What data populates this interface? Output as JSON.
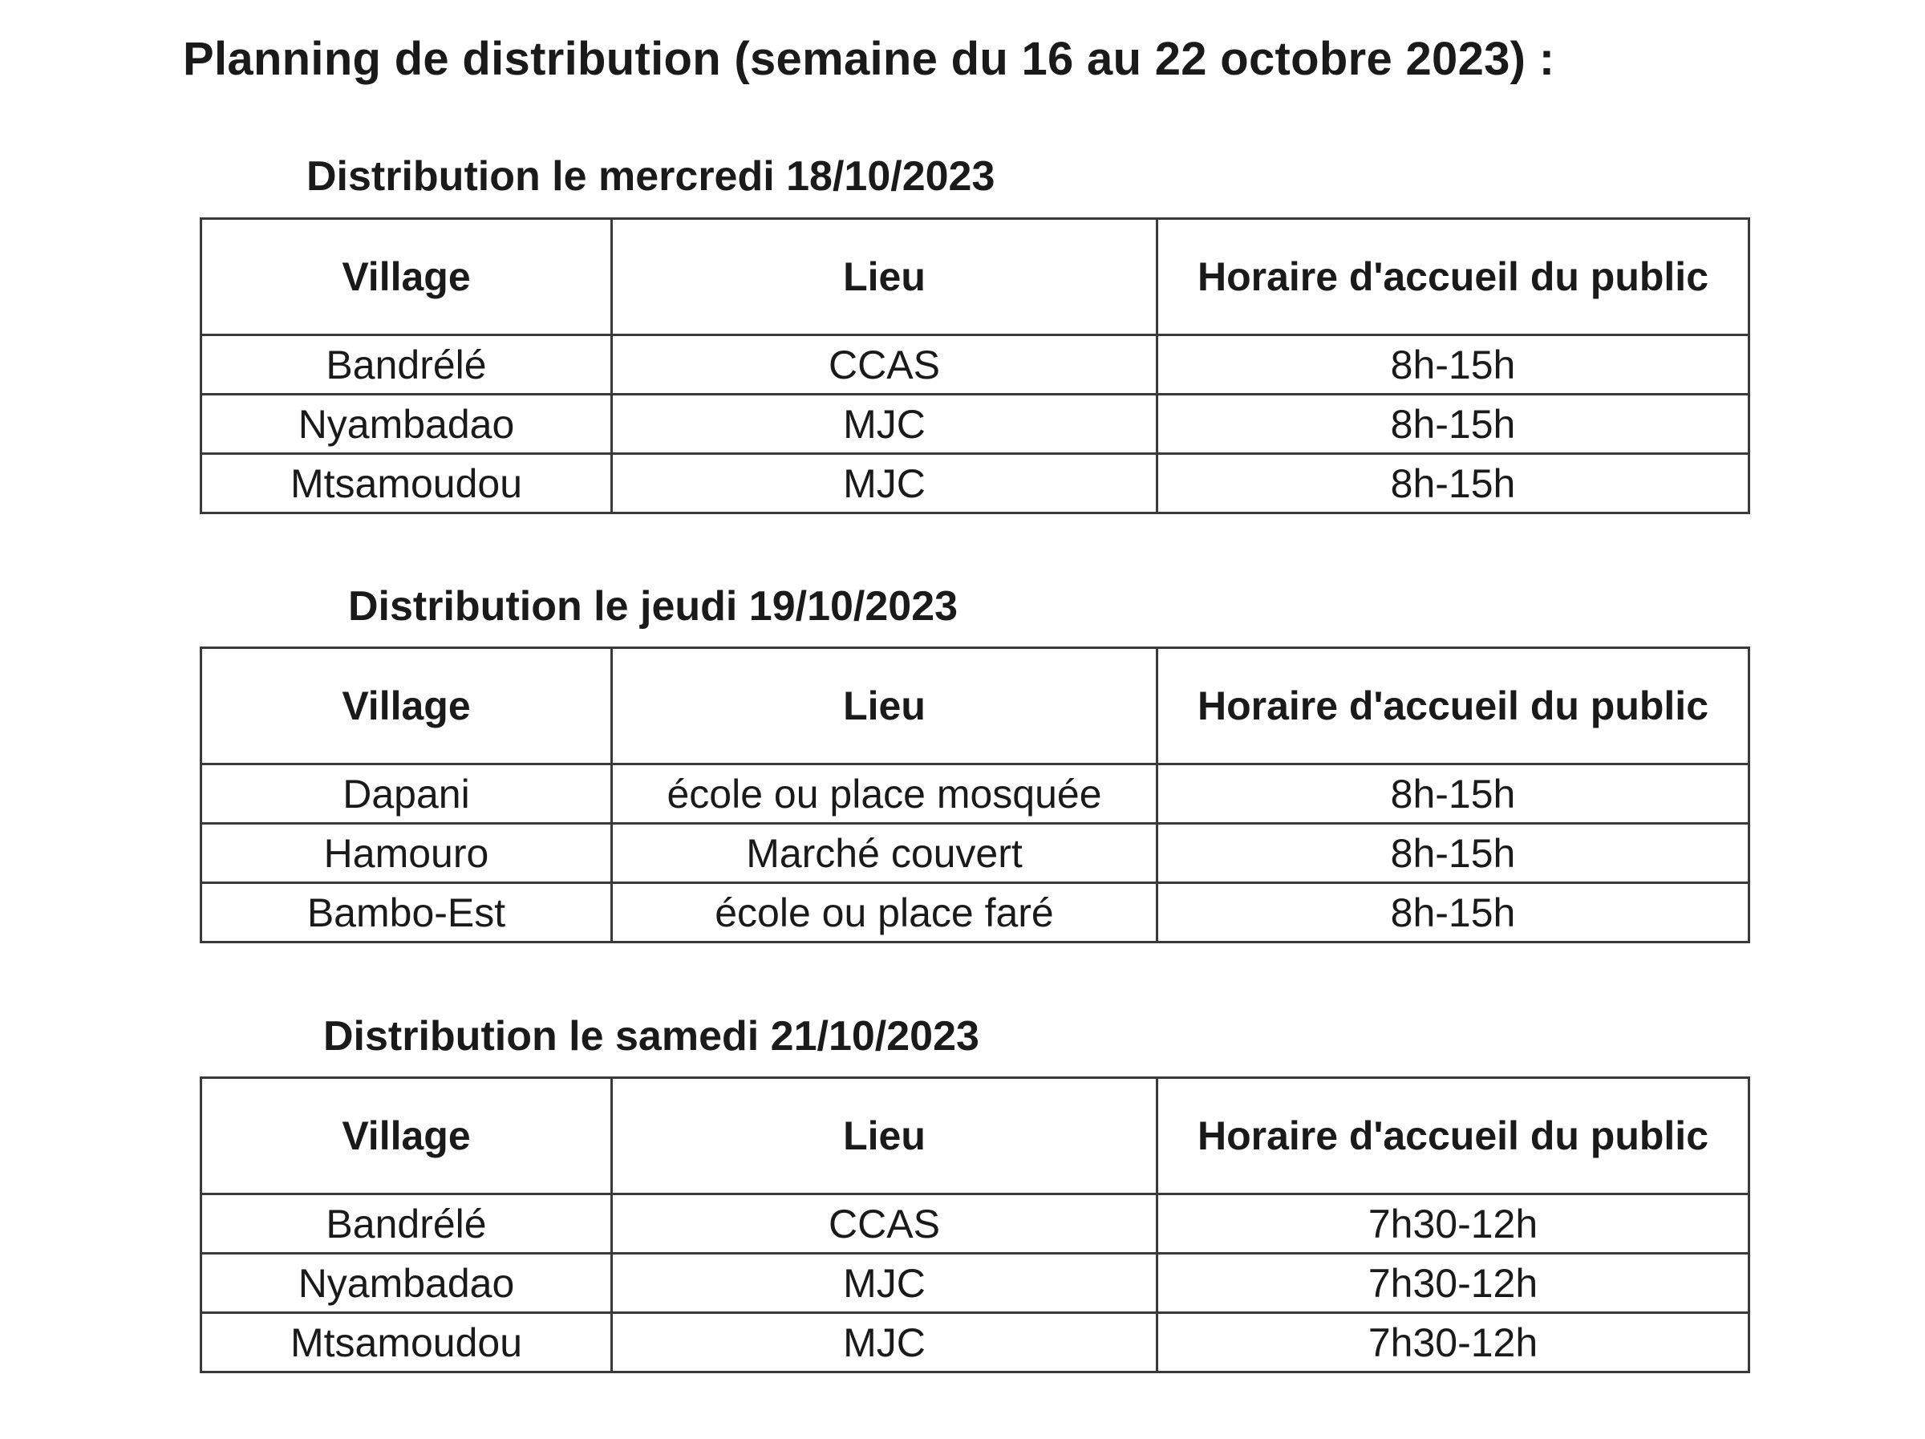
{
  "title": "Planning de distribution (semaine du 16 au 22 octobre 2023) :",
  "headers": {
    "village": "Village",
    "lieu": "Lieu",
    "horaire": "Horaire d'accueil du public"
  },
  "sections": [
    {
      "heading": "Distribution le mercredi 18/10/2023",
      "rows": [
        {
          "village": "Bandrélé",
          "lieu": "CCAS",
          "horaire": "8h-15h"
        },
        {
          "village": "Nyambadao",
          "lieu": "MJC",
          "horaire": "8h-15h"
        },
        {
          "village": "Mtsamoudou",
          "lieu": "MJC",
          "horaire": "8h-15h"
        }
      ]
    },
    {
      "heading": "Distribution le jeudi 19/10/2023",
      "rows": [
        {
          "village": "Dapani",
          "lieu": "école ou place mosquée",
          "horaire": "8h-15h"
        },
        {
          "village": "Hamouro",
          "lieu": "Marché couvert",
          "horaire": "8h-15h"
        },
        {
          "village": "Bambo-Est",
          "lieu": "école ou place faré",
          "horaire": "8h-15h"
        }
      ]
    },
    {
      "heading": "Distribution le samedi 21/10/2023",
      "rows": [
        {
          "village": "Bandrélé",
          "lieu": "CCAS",
          "horaire": "7h30-12h"
        },
        {
          "village": "Nyambadao",
          "lieu": "MJC",
          "horaire": "7h30-12h"
        },
        {
          "village": "Mtsamoudou",
          "lieu": "MJC",
          "horaire": "7h30-12h"
        }
      ]
    }
  ]
}
